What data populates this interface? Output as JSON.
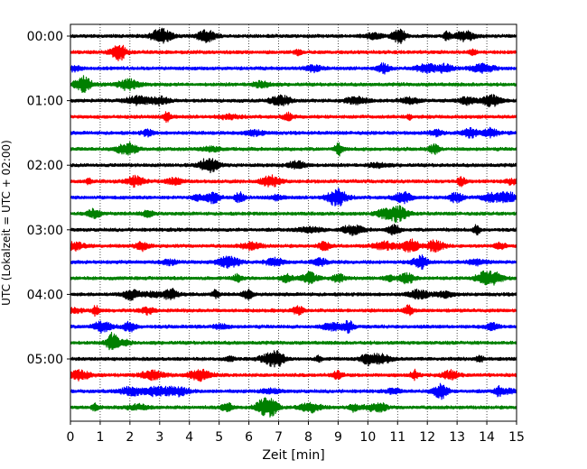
{
  "chart_data": {
    "type": "line",
    "title": "",
    "xlabel": "Zeit  [min]",
    "ylabel": "UTC (Lokalzeit = UTC + 02:00)",
    "xlim": [
      0,
      15
    ],
    "x_ticks": [
      "0",
      "1",
      "2",
      "3",
      "4",
      "5",
      "6",
      "7",
      "8",
      "9",
      "10",
      "11",
      "12",
      "13",
      "14",
      "15"
    ],
    "y_ticks": [
      "00:00",
      "01:00",
      "02:00",
      "03:00",
      "04:00",
      "05:00"
    ],
    "minutes_per_trace": 15,
    "grid": "vertical-dotted",
    "trace_colors": [
      "#000000",
      "#ff0000",
      "#0000ff",
      "#008000"
    ],
    "traces": [
      {
        "start": "00:00",
        "color": "#000000"
      },
      {
        "start": "00:15",
        "color": "#ff0000"
      },
      {
        "start": "00:30",
        "color": "#0000ff"
      },
      {
        "start": "00:45",
        "color": "#008000"
      },
      {
        "start": "01:00",
        "color": "#000000"
      },
      {
        "start": "01:15",
        "color": "#ff0000"
      },
      {
        "start": "01:30",
        "color": "#0000ff"
      },
      {
        "start": "01:45",
        "color": "#008000"
      },
      {
        "start": "02:00",
        "color": "#000000"
      },
      {
        "start": "02:15",
        "color": "#ff0000"
      },
      {
        "start": "02:30",
        "color": "#0000ff"
      },
      {
        "start": "02:45",
        "color": "#008000"
      },
      {
        "start": "03:00",
        "color": "#000000"
      },
      {
        "start": "03:15",
        "color": "#ff0000"
      },
      {
        "start": "03:30",
        "color": "#0000ff"
      },
      {
        "start": "03:45",
        "color": "#008000"
      },
      {
        "start": "04:00",
        "color": "#000000"
      },
      {
        "start": "04:15",
        "color": "#ff0000"
      },
      {
        "start": "04:30",
        "color": "#0000ff"
      },
      {
        "start": "04:45",
        "color": "#008000"
      },
      {
        "start": "05:00",
        "color": "#000000"
      },
      {
        "start": "05:15",
        "color": "#ff0000"
      },
      {
        "start": "05:30",
        "color": "#0000ff"
      },
      {
        "start": "05:45",
        "color": "#008000"
      }
    ]
  }
}
